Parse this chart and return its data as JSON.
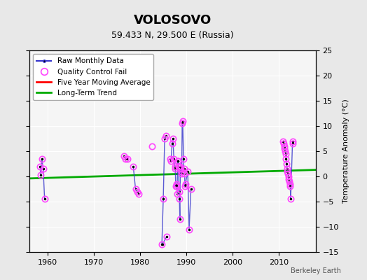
{
  "title": "VOLOSOVO",
  "subtitle": "59.433 N, 29.500 E (Russia)",
  "ylabel": "Temperature Anomaly (°C)",
  "watermark": "Berkeley Earth",
  "xlim": [
    1956,
    2018
  ],
  "ylim": [
    -15,
    25
  ],
  "yticks": [
    -15,
    -10,
    -5,
    0,
    5,
    10,
    15,
    20,
    25
  ],
  "xticks": [
    1960,
    1970,
    1980,
    1990,
    2000,
    2010
  ],
  "bg_color": "#e8e8e8",
  "plot_bg_color": "#f5f5f5",
  "trend_line": [
    [
      1956,
      -0.4
    ],
    [
      2018,
      1.3
    ]
  ],
  "raw_color": "#3333cc",
  "qc_color": "#ff44ff",
  "trend_color": "#00aa00",
  "moving_avg_color": "#ff0000",
  "connected_segments": [
    [
      [
        1958.3,
        2.0
      ],
      [
        1958.5,
        0.3
      ],
      [
        1958.7,
        3.5
      ],
      [
        1959.0,
        1.5
      ],
      [
        1959.3,
        -4.5
      ]
    ],
    [
      [
        1976.5,
        4.0
      ],
      [
        1976.8,
        3.5
      ],
      [
        1977.2,
        3.5
      ]
    ],
    [
      [
        1978.5,
        2.0
      ],
      [
        1979.0,
        -2.5
      ],
      [
        1979.4,
        -3.0
      ],
      [
        1979.7,
        -3.5
      ]
    ],
    [
      [
        1984.7,
        -13.5
      ],
      [
        1985.0,
        -4.5
      ]
    ],
    [
      [
        1985.0,
        -4.5
      ],
      [
        1985.3,
        7.5
      ],
      [
        1985.6,
        8.0
      ]
    ],
    [
      [
        1985.7,
        -12.0
      ],
      [
        1984.8,
        -13.5
      ]
    ],
    [
      [
        1986.5,
        3.5
      ],
      [
        1986.7,
        3.0
      ],
      [
        1986.9,
        6.5
      ],
      [
        1987.1,
        7.5
      ],
      [
        1987.3,
        3.5
      ],
      [
        1987.5,
        2.0
      ],
      [
        1987.6,
        1.5
      ],
      [
        1987.7,
        -2.0
      ],
      [
        1987.8,
        -1.5
      ],
      [
        1987.9,
        -2.0
      ],
      [
        1988.0,
        -3.5
      ],
      [
        1988.1,
        3.0
      ],
      [
        1988.2,
        3.0
      ],
      [
        1988.3,
        2.0
      ],
      [
        1988.4,
        -3.0
      ],
      [
        1988.5,
        -4.5
      ],
      [
        1988.6,
        -8.5
      ],
      [
        1988.7,
        2.0
      ],
      [
        1988.8,
        1.5
      ],
      [
        1988.9,
        1.0
      ],
      [
        1989.0,
        0.5
      ],
      [
        1989.1,
        10.5
      ],
      [
        1989.2,
        11.0
      ],
      [
        1989.4,
        3.5
      ],
      [
        1989.5,
        0.5
      ],
      [
        1989.6,
        1.5
      ],
      [
        1989.7,
        -2.0
      ],
      [
        1989.8,
        -1.5
      ],
      [
        1990.3,
        1.0
      ],
      [
        1990.6,
        -10.5
      ],
      [
        1991.0,
        -2.5
      ]
    ],
    [
      [
        2011.0,
        7.0
      ],
      [
        2011.1,
        6.5
      ],
      [
        2011.2,
        6.0
      ],
      [
        2011.3,
        5.5
      ],
      [
        2011.4,
        5.0
      ],
      [
        2011.5,
        4.5
      ],
      [
        2011.6,
        3.5
      ],
      [
        2011.7,
        2.5
      ],
      [
        2011.8,
        1.5
      ],
      [
        2011.9,
        1.0
      ],
      [
        2012.0,
        0.5
      ],
      [
        2012.1,
        0.0
      ],
      [
        2012.2,
        -0.5
      ],
      [
        2012.3,
        -1.0
      ],
      [
        2012.4,
        -1.5
      ],
      [
        2012.5,
        -2.0
      ],
      [
        2012.6,
        -4.5
      ],
      [
        2013.0,
        7.0
      ],
      [
        2013.1,
        6.5
      ]
    ]
  ],
  "qc_fail_points": [
    [
      1958.3,
      2.0
    ],
    [
      1958.5,
      0.3
    ],
    [
      1958.7,
      3.5
    ],
    [
      1959.0,
      1.5
    ],
    [
      1959.3,
      -4.5
    ],
    [
      1976.5,
      4.0
    ],
    [
      1976.8,
      3.5
    ],
    [
      1977.2,
      3.5
    ],
    [
      1978.5,
      2.0
    ],
    [
      1979.0,
      -2.5
    ],
    [
      1979.4,
      -3.0
    ],
    [
      1979.7,
      -3.5
    ],
    [
      1982.5,
      6.0
    ],
    [
      1984.7,
      -13.5
    ],
    [
      1985.0,
      -4.5
    ],
    [
      1985.3,
      7.5
    ],
    [
      1985.6,
      8.0
    ],
    [
      1985.7,
      -12.0
    ],
    [
      1986.5,
      3.5
    ],
    [
      1986.7,
      3.0
    ],
    [
      1986.9,
      6.5
    ],
    [
      1987.1,
      7.5
    ],
    [
      1987.3,
      3.5
    ],
    [
      1987.5,
      2.0
    ],
    [
      1987.6,
      1.5
    ],
    [
      1987.7,
      -2.0
    ],
    [
      1987.8,
      -1.5
    ],
    [
      1987.9,
      -2.0
    ],
    [
      1988.0,
      -3.5
    ],
    [
      1988.1,
      3.0
    ],
    [
      1988.2,
      3.0
    ],
    [
      1988.3,
      2.0
    ],
    [
      1988.4,
      -3.0
    ],
    [
      1988.5,
      -4.5
    ],
    [
      1988.6,
      -8.5
    ],
    [
      1988.7,
      2.0
    ],
    [
      1988.8,
      1.5
    ],
    [
      1988.9,
      1.0
    ],
    [
      1989.0,
      0.5
    ],
    [
      1989.1,
      10.5
    ],
    [
      1989.2,
      11.0
    ],
    [
      1989.4,
      3.5
    ],
    [
      1989.5,
      0.5
    ],
    [
      1989.6,
      1.5
    ],
    [
      1989.7,
      -2.0
    ],
    [
      1989.8,
      -1.5
    ],
    [
      1990.3,
      1.0
    ],
    [
      1990.6,
      -10.5
    ],
    [
      1991.0,
      -2.5
    ],
    [
      2011.0,
      7.0
    ],
    [
      2011.1,
      6.5
    ],
    [
      2011.2,
      6.0
    ],
    [
      2011.3,
      5.5
    ],
    [
      2011.4,
      5.0
    ],
    [
      2011.5,
      4.5
    ],
    [
      2011.6,
      3.5
    ],
    [
      2011.7,
      2.5
    ],
    [
      2011.8,
      1.5
    ],
    [
      2011.9,
      1.0
    ],
    [
      2012.0,
      0.5
    ],
    [
      2012.1,
      0.0
    ],
    [
      2012.2,
      -0.5
    ],
    [
      2012.3,
      -1.0
    ],
    [
      2012.4,
      -1.5
    ],
    [
      2012.5,
      -2.0
    ],
    [
      2012.6,
      -4.5
    ],
    [
      2013.0,
      7.0
    ],
    [
      2013.1,
      6.5
    ]
  ]
}
